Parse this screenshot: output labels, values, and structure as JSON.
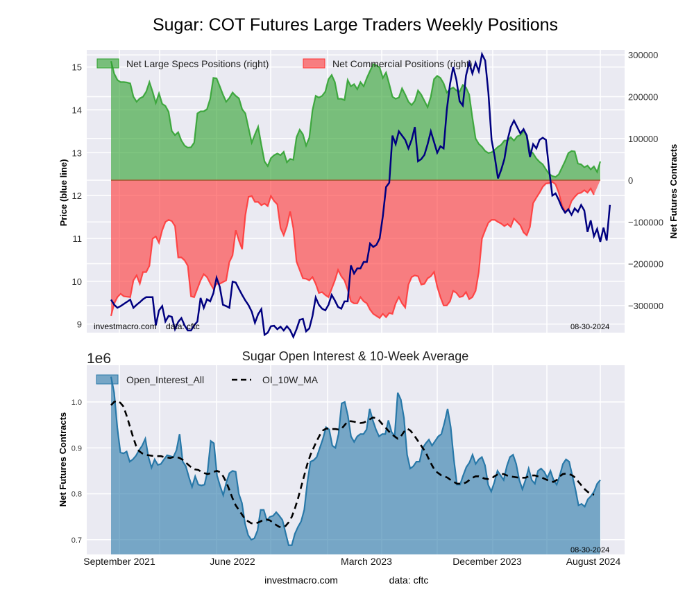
{
  "title": "Sugar: COT Futures Large Traders Weekly Positions",
  "chart_data": [
    {
      "type": "area",
      "panel": "top",
      "title": "Sugar: COT Futures Large Traders Weekly Positions",
      "ylabel_left": "Price (blue line)",
      "ylabel_right": "Net Futures Contracts",
      "left_ticks": [
        "9",
        "10",
        "11",
        "12",
        "13",
        "14",
        "15"
      ],
      "left_ylim": [
        8.8,
        15.4
      ],
      "right_ticks": [
        "300000",
        "200000",
        "100000",
        "0",
        "−100000",
        "−200000",
        "−300000"
      ],
      "right_ylim": [
        -365000,
        312000
      ],
      "grid": true,
      "legend_position": "top-left",
      "legend": [
        {
          "label": "Net Large Specs Positions (right)",
          "color": "#2ca02c"
        },
        {
          "label": "Net Commercial Positions (right)",
          "color": "#ff3333"
        }
      ],
      "annotation_left": "investmacro.com    data: cftc",
      "annotation_right": "08-30-2024",
      "x_start": "2021-09-07",
      "x_end": "2024-08-27",
      "series": [
        {
          "name": "Net Large Specs Positions",
          "axis": "right",
          "values": [
            285000,
            255000,
            240000,
            235000,
            235000,
            234000,
            232000,
            200000,
            188000,
            196000,
            200000,
            212000,
            235000,
            212000,
            185000,
            208000,
            183000,
            178000,
            164000,
            118000,
            108000,
            115000,
            95000,
            83000,
            78000,
            79000,
            90000,
            160000,
            165000,
            165000,
            170000,
            195000,
            245000,
            244000,
            225000,
            205000,
            188000,
            197000,
            210000,
            202000,
            196000,
            170000,
            160000,
            125000,
            90000,
            110000,
            128000,
            85000,
            45000,
            34000,
            53000,
            60000,
            64000,
            60000,
            68000,
            43000,
            51000,
            49000,
            103000,
            121000,
            110000,
            83000,
            102000,
            168000,
            202000,
            198000,
            202000,
            212000,
            242000,
            252000,
            235000,
            195000,
            195000,
            192000,
            240000,
            225000,
            230000,
            218000,
            235000,
            225000,
            245000,
            262000,
            278000,
            275000,
            270000,
            245000,
            258000,
            230000,
            200000,
            195000,
            198000,
            220000,
            205000,
            188000,
            180000,
            190000,
            215000,
            205000,
            190000,
            175000,
            200000,
            242000,
            250000,
            245000,
            232000,
            210000,
            218000,
            222000,
            215000,
            212000,
            228000,
            222000,
            205000,
            150000,
            100000,
            87000,
            80000,
            70000,
            65000,
            67000,
            73000,
            80000,
            85000,
            95000,
            95000,
            103000,
            95000,
            105000,
            108000,
            118000,
            108000,
            72000,
            64000,
            52000,
            44000,
            38000,
            26000,
            15000,
            10000,
            8000,
            14000,
            30000,
            46000,
            65000,
            70000,
            69000,
            40000,
            38000,
            31000,
            35000,
            26000,
            33000,
            20000,
            45000
          ]
        },
        {
          "name": "Net Commercial Positions",
          "axis": "right",
          "values": [
            -325000,
            -295000,
            -280000,
            -272000,
            -278000,
            -279000,
            -280000,
            -240000,
            -228000,
            -248000,
            -220000,
            -220000,
            -205000,
            -140000,
            -135000,
            -150000,
            -120000,
            -100000,
            -95000,
            -98000,
            -110000,
            -185000,
            -185000,
            -192000,
            -205000,
            -278000,
            -280000,
            -260000,
            -240000,
            -225000,
            -232000,
            -247000,
            -260000,
            -248000,
            -248000,
            -244000,
            -240000,
            -196000,
            -180000,
            -120000,
            -145000,
            -165000,
            -84000,
            -40000,
            -38000,
            -52000,
            -52000,
            -60000,
            -56000,
            -62000,
            -38000,
            -50000,
            -58000,
            -115000,
            -132000,
            -110000,
            -75000,
            -115000,
            -195000,
            -215000,
            -235000,
            -236000,
            -240000,
            -232000,
            -248000,
            -270000,
            -268000,
            -275000,
            -280000,
            -260000,
            -240000,
            -215000,
            -230000,
            -240000,
            -262000,
            -290000,
            -295000,
            -295000,
            -280000,
            -290000,
            -295000,
            -310000,
            -320000,
            -325000,
            -330000,
            -320000,
            -328000,
            -318000,
            -320000,
            -295000,
            -280000,
            -295000,
            -305000,
            -250000,
            -232000,
            -228000,
            -230000,
            -250000,
            -248000,
            -235000,
            -230000,
            -220000,
            -255000,
            -280000,
            -300000,
            -300000,
            -290000,
            -265000,
            -270000,
            -280000,
            -278000,
            -268000,
            -285000,
            -280000,
            -265000,
            -220000,
            -140000,
            -120000,
            -102000,
            -95000,
            -95000,
            -100000,
            -104000,
            -110000,
            -105000,
            -112000,
            -92000,
            -100000,
            -108000,
            -125000,
            -132000,
            -112000,
            -55000,
            -42000,
            -30000,
            -16000,
            -8000,
            -7000,
            -4000,
            -10000,
            -30000,
            -60000,
            -75000,
            -72000,
            -50000,
            -40000,
            -32000,
            -30000,
            -24000,
            -30000,
            -20000,
            -35000
          ]
        },
        {
          "name": "Price (blue line)",
          "axis": "left",
          "color": "#000080",
          "values": [
            9.57,
            9.45,
            9.38,
            9.42,
            9.47,
            9.52,
            9.57,
            9.38,
            9.45,
            9.51,
            9.58,
            9.63,
            9.63,
            9.63,
            8.97,
            9.32,
            9.42,
            9.06,
            9.19,
            9.17,
            8.88,
            9.05,
            9.14,
            8.97,
            8.85,
            8.85,
            8.97,
            9.06,
            9.61,
            9.38,
            9.58,
            9.53,
            9.72,
            10.08,
            9.87,
            9.45,
            9.42,
            9.38,
            9.99,
            9.97,
            9.82,
            9.68,
            9.55,
            9.44,
            9.29,
            9.03,
            9.23,
            9.35,
            8.75,
            8.8,
            8.95,
            8.96,
            8.88,
            8.94,
            8.85,
            8.95,
            8.86,
            8.7,
            8.88,
            9.1,
            9.12,
            8.83,
            8.9,
            9.19,
            9.62,
            9.45,
            9.36,
            9.32,
            9.45,
            9.68,
            9.55,
            9.4,
            9.36,
            9.53,
            9.53,
            10.37,
            10.18,
            10.3,
            10.3,
            10.45,
            10.45,
            10.88,
            10.8,
            10.85,
            11.0,
            11.52,
            12.2,
            12.3,
            13.4,
            13.2,
            13.5,
            13.4,
            13.3,
            13.1,
            13.3,
            13.6,
            12.8,
            12.85,
            12.95,
            13.2,
            13.5,
            13.25,
            13.0,
            13.15,
            13.1,
            14.0,
            14.6,
            15.0,
            14.7,
            14.2,
            14.1,
            14.8,
            15.1,
            14.85,
            15.1,
            14.9,
            15.3,
            15.15,
            14.4,
            13.3,
            12.9,
            12.4,
            12.6,
            12.85,
            13.3,
            13.6,
            13.75,
            13.6,
            13.45,
            13.55,
            13.4,
            12.9,
            13.2,
            13.1,
            13.3,
            13.35,
            13.3,
            12.6,
            12.0,
            12.05,
            11.9,
            11.72,
            11.6,
            11.68,
            11.55,
            11.7,
            11.62,
            11.78,
            11.65,
            11.15,
            11.42,
            11.05,
            11.22,
            10.92,
            11.25,
            10.95,
            11.78
          ]
        }
      ]
    },
    {
      "type": "area",
      "panel": "bottom",
      "title": "Sugar Open Interest & 10-Week Average",
      "offset_label": "1e6",
      "ylabel": "Net Futures Contracts",
      "y_ticks": [
        "0.7",
        "0.8",
        "0.9",
        "1.0"
      ],
      "ylim": [
        0.668,
        1.08
      ],
      "grid": true,
      "legend_position": "top-left",
      "legend": [
        {
          "label": "Open_Interest_All",
          "color": "#2878a8"
        },
        {
          "label": "OI_10W_MA",
          "color": "#000000",
          "style": "dashed"
        }
      ],
      "x_tick_labels": [
        "September 2021",
        "June 2022",
        "March 2023",
        "December 2023",
        "August 2024"
      ],
      "annotation_right": "08-30-2024",
      "series": [
        {
          "name": "Open_Interest_All",
          "values": [
            1.055,
            1.02,
            0.945,
            0.89,
            0.888,
            0.892,
            0.87,
            0.875,
            0.883,
            0.895,
            0.905,
            0.92,
            0.88,
            0.857,
            0.875,
            0.863,
            0.865,
            0.875,
            0.884,
            0.882,
            0.88,
            0.895,
            0.93,
            0.87,
            0.86,
            0.836,
            0.815,
            0.838,
            0.82,
            0.818,
            0.82,
            0.85,
            0.915,
            0.91,
            0.84,
            0.817,
            0.797,
            0.825,
            0.845,
            0.85,
            0.848,
            0.8,
            0.78,
            0.735,
            0.71,
            0.7,
            0.703,
            0.72,
            0.765,
            0.765,
            0.742,
            0.75,
            0.752,
            0.76,
            0.752,
            0.743,
            0.715,
            0.688,
            0.688,
            0.713,
            0.728,
            0.74,
            0.765,
            0.825,
            0.87,
            0.873,
            0.88,
            0.9,
            0.92,
            0.945,
            0.94,
            0.905,
            0.9,
            0.93,
            0.997,
            1.0,
            0.97,
            0.925,
            0.913,
            0.925,
            0.93,
            0.93,
            0.94,
            0.985,
            0.96,
            0.94,
            0.925,
            0.93,
            0.93,
            0.96,
            0.935,
            0.925,
            1.02,
            1.005,
            0.965,
            0.885,
            0.855,
            0.86,
            0.87,
            0.87,
            0.9,
            0.91,
            0.918,
            0.905,
            0.915,
            0.925,
            0.93,
            0.955,
            0.985,
            0.945,
            0.875,
            0.82,
            0.82,
            0.84,
            0.858,
            0.868,
            0.885,
            0.865,
            0.875,
            0.88,
            0.862,
            0.82,
            0.805,
            0.825,
            0.85,
            0.84,
            0.83,
            0.86,
            0.88,
            0.885,
            0.865,
            0.83,
            0.81,
            0.83,
            0.855,
            0.83,
            0.822,
            0.85,
            0.855,
            0.848,
            0.835,
            0.85,
            0.83,
            0.82,
            0.84,
            0.865,
            0.875,
            0.87,
            0.84,
            0.81,
            0.775,
            0.778,
            0.772,
            0.788,
            0.795,
            0.805,
            0.822,
            0.83
          ]
        },
        {
          "name": "OI_10W_MA",
          "values": [
            0.993,
            1.0,
            1.003,
            0.998,
            0.99,
            0.97,
            0.948,
            0.925,
            0.905,
            0.893,
            0.888,
            0.885,
            0.884,
            0.883,
            0.882,
            0.882,
            0.882,
            0.88,
            0.879,
            0.878,
            0.88,
            0.88,
            0.878,
            0.874,
            0.868,
            0.862,
            0.856,
            0.853,
            0.852,
            0.848,
            0.845,
            0.843,
            0.845,
            0.848,
            0.85,
            0.847,
            0.838,
            0.825,
            0.808,
            0.79,
            0.775,
            0.765,
            0.755,
            0.745,
            0.74,
            0.736,
            0.735,
            0.737,
            0.74,
            0.744,
            0.744,
            0.742,
            0.737,
            0.732,
            0.728,
            0.727,
            0.73,
            0.738,
            0.75,
            0.768,
            0.79,
            0.815,
            0.84,
            0.865,
            0.885,
            0.9,
            0.915,
            0.928,
            0.938,
            0.942,
            0.942,
            0.941,
            0.941,
            0.94,
            0.942,
            0.95,
            0.958,
            0.958,
            0.957,
            0.955,
            0.954,
            0.955,
            0.958,
            0.962,
            0.966,
            0.965,
            0.96,
            0.952,
            0.945,
            0.937,
            0.93,
            0.925,
            0.92,
            0.925,
            0.935,
            0.942,
            0.938,
            0.93,
            0.92,
            0.91,
            0.9,
            0.89,
            0.875,
            0.862,
            0.85,
            0.845,
            0.84,
            0.838,
            0.835,
            0.83,
            0.826,
            0.822,
            0.822,
            0.822,
            0.825,
            0.83,
            0.835,
            0.838,
            0.838,
            0.835,
            0.833,
            0.832,
            0.833,
            0.838,
            0.842,
            0.843,
            0.843,
            0.84,
            0.838,
            0.837,
            0.836,
            0.835,
            0.835,
            0.835,
            0.838,
            0.84,
            0.84,
            0.838,
            0.836,
            0.833,
            0.83,
            0.827,
            0.826,
            0.83,
            0.838,
            0.843,
            0.844,
            0.843,
            0.84,
            0.835,
            0.826,
            0.818,
            0.81,
            0.804,
            0.8,
            0.798
          ]
        }
      ]
    }
  ],
  "footer": {
    "site": "investmacro.com",
    "source": "data: cftc"
  }
}
